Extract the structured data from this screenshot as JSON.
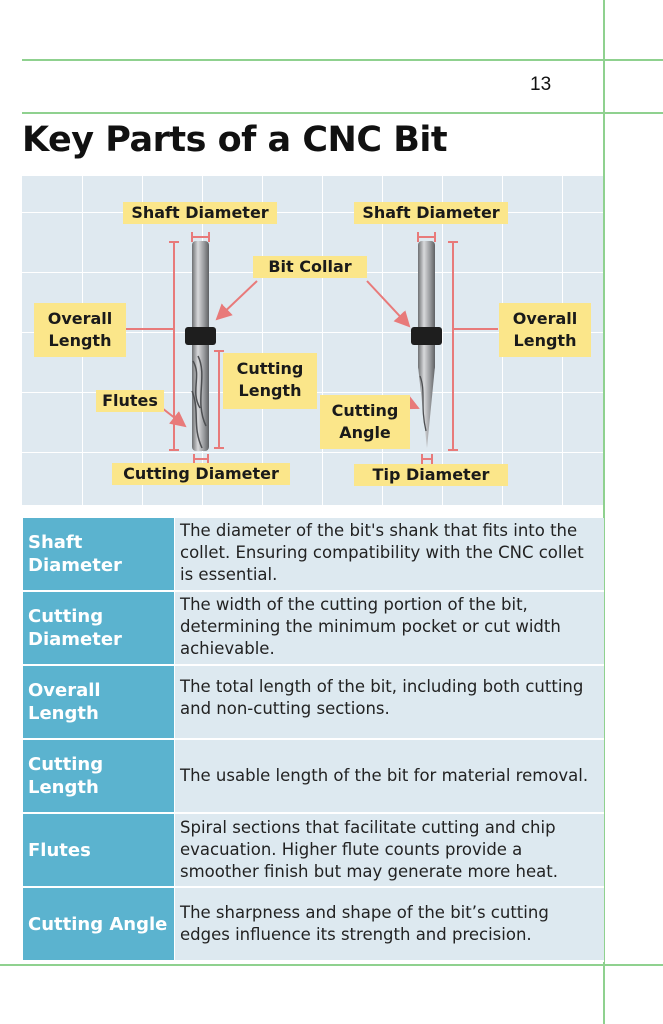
{
  "page": {
    "number": "13",
    "title": "Key Parts of a CNC Bit"
  },
  "diagram": {
    "labels": {
      "shaft_diameter_left": "Shaft Diameter",
      "shaft_diameter_right": "Shaft Diameter",
      "bit_collar": "Bit Collar",
      "overall_length_left": "Overall Length",
      "overall_length_right": "Overall Length",
      "cutting_length": "Cutting Length",
      "flutes": "Flutes",
      "cutting_angle": "Cutting Angle",
      "cutting_diameter": "Cutting Diameter",
      "tip_diameter": "Tip Diameter"
    },
    "colors": {
      "label_fill": "#fbe68a",
      "dimension_line": "#e87a7a",
      "collar": "#1e1e1e",
      "background": "#dfe9f0"
    }
  },
  "table": {
    "rows": [
      {
        "term": "Shaft Diameter",
        "definition": "The diameter of the bit's shank that fits into the collet. Ensuring compatibility with the CNC collet is essential."
      },
      {
        "term": "Cutting Diameter",
        "definition": "The width of the cutting portion of the bit, determining the minimum pocket or cut width achievable."
      },
      {
        "term": "Overall Length",
        "definition": "The total length of the bit, including both cutting and non-cutting sections."
      },
      {
        "term": "Cutting Length",
        "definition": "The usable length of the bit for material removal."
      },
      {
        "term": "Flutes",
        "definition": "Spiral sections that facilitate cutting and chip evacuation. Higher flute counts provide a smoother finish but may generate more heat."
      },
      {
        "term": "Cutting Angle",
        "definition": "The sharpness and shape of the bit’s cutting edges influence its strength and precision."
      }
    ],
    "colors": {
      "term_bg": "#5bb3cf",
      "def_bg": "#dde9f0"
    }
  }
}
